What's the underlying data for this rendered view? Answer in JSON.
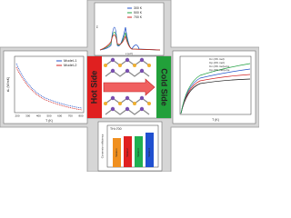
{
  "top_panel": {
    "legend": [
      "300 K",
      "500 K",
      "700 K"
    ],
    "x_label": "ε (eV)",
    "y_label": "Σ"
  },
  "left_panel": {
    "legend": [
      "Model-1",
      "Model-2"
    ],
    "x_label": "T (K)",
    "y_label": "κL (W/mK)",
    "x_ticks": [
      "200",
      "300",
      "400",
      "500",
      "600",
      "700",
      "800"
    ]
  },
  "center": {
    "hot": "Hot Side",
    "cold": "Cold Side"
  },
  "right_panel": {
    "legend": [
      "Cv (J/K·mol)",
      "Cp (J/K·mol)",
      "Cv (J/K·mol)+Ce",
      "Cp (J/K·mol)+Ce"
    ],
    "x_label": "T (K)"
  },
  "bottom_panel": {
    "label": "TH=700",
    "y_label": "Conversion efficiency",
    "bars": [
      "Model-1",
      "Model-2",
      "Model-3",
      "Model-4"
    ]
  }
}
